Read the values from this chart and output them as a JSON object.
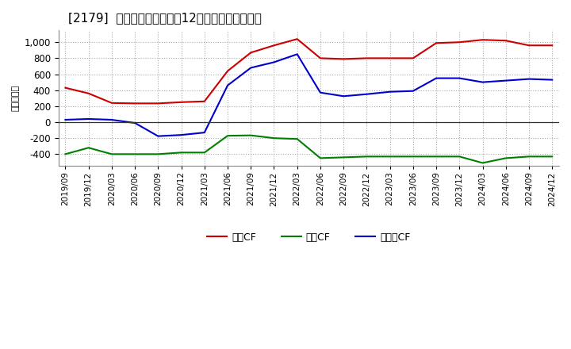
{
  "title": "[2179]  キャッシュフローの12か月移動合計の推移",
  "ylabel": "（百万円）",
  "x_labels": [
    "2019/09",
    "2019/12",
    "2020/03",
    "2020/06",
    "2020/09",
    "2020/12",
    "2021/03",
    "2021/06",
    "2021/09",
    "2021/12",
    "2022/03",
    "2022/06",
    "2022/09",
    "2022/12",
    "2023/03",
    "2023/06",
    "2023/09",
    "2023/12",
    "2024/03",
    "2024/06",
    "2024/09",
    "2024/12"
  ],
  "eigyo_cf": [
    430,
    360,
    240,
    235,
    235,
    250,
    260,
    640,
    870,
    960,
    1040,
    800,
    790,
    800,
    800,
    800,
    990,
    1000,
    1030,
    1020,
    960,
    960
  ],
  "toshi_cf": [
    -400,
    -320,
    -400,
    -400,
    -400,
    -380,
    -380,
    -170,
    -165,
    -200,
    -210,
    -450,
    -440,
    -430,
    -430,
    -430,
    -430,
    -430,
    -510,
    -450,
    -430,
    -430
  ],
  "free_cf": [
    30,
    40,
    30,
    -10,
    -175,
    -160,
    -130,
    460,
    680,
    750,
    850,
    370,
    325,
    350,
    380,
    390,
    550,
    550,
    500,
    520,
    540,
    530
  ],
  "eigyo_color": "#cc0000",
  "toshi_color": "#008000",
  "free_color": "#0000cc",
  "ylim": [
    -550,
    1150
  ],
  "yticks": [
    -400,
    -200,
    0,
    200,
    400,
    600,
    800,
    1000
  ],
  "background_color": "#ffffff",
  "plot_bg_color": "#ffffff",
  "grid_color": "#aaaaaa",
  "legend_labels": [
    "営業CF",
    "投資CF",
    "フリーCF"
  ]
}
